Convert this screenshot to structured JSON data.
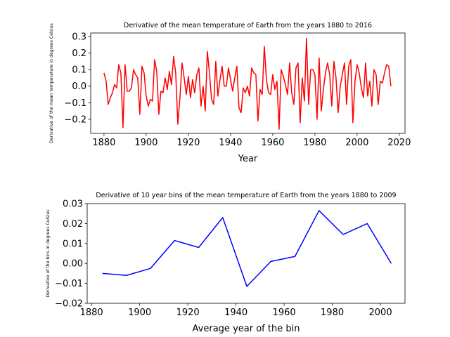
{
  "chart_data": [
    {
      "type": "line",
      "title": "Derivative of the mean temperature of Earth from the years 1880 to 2016",
      "xlabel": "Year",
      "ylabel": "Derivative of the mean temperature in degrees Celsius",
      "color": "#ff0000",
      "x": [
        1880,
        1881,
        1882,
        1883,
        1884,
        1885,
        1886,
        1887,
        1888,
        1889,
        1890,
        1891,
        1892,
        1893,
        1894,
        1895,
        1896,
        1897,
        1898,
        1899,
        1900,
        1901,
        1902,
        1903,
        1904,
        1905,
        1906,
        1907,
        1908,
        1909,
        1910,
        1911,
        1912,
        1913,
        1914,
        1915,
        1916,
        1917,
        1918,
        1919,
        1920,
        1921,
        1922,
        1923,
        1924,
        1925,
        1926,
        1927,
        1928,
        1929,
        1930,
        1931,
        1932,
        1933,
        1934,
        1935,
        1936,
        1937,
        1938,
        1939,
        1940,
        1941,
        1942,
        1943,
        1944,
        1945,
        1946,
        1947,
        1948,
        1949,
        1950,
        1951,
        1952,
        1953,
        1954,
        1955,
        1956,
        1957,
        1958,
        1959,
        1960,
        1961,
        1962,
        1963,
        1964,
        1965,
        1966,
        1967,
        1968,
        1969,
        1970,
        1971,
        1972,
        1973,
        1974,
        1975,
        1976,
        1977,
        1978,
        1979,
        1980,
        1981,
        1982,
        1983,
        1984,
        1985,
        1986,
        1987,
        1988,
        1989,
        1990,
        1991,
        1992,
        1993,
        1994,
        1995,
        1996,
        1997,
        1998,
        1999,
        2000,
        2001,
        2002,
        2003,
        2004,
        2005,
        2006,
        2007,
        2008,
        2009,
        2010,
        2011,
        2012,
        2013,
        2014,
        2015,
        2016
      ],
      "values": [
        0.08,
        0.03,
        -0.11,
        -0.07,
        -0.04,
        0.01,
        -0.01,
        0.13,
        0.08,
        -0.25,
        0.13,
        -0.03,
        -0.03,
        -0.01,
        0.1,
        0.07,
        0.05,
        -0.17,
        0.12,
        0.08,
        -0.06,
        -0.12,
        -0.08,
        -0.09,
        0.16,
        0.09,
        -0.17,
        -0.03,
        -0.04,
        0.05,
        -0.02,
        0.09,
        0.01,
        0.18,
        0.08,
        -0.23,
        -0.07,
        0.14,
        0.05,
        -0.05,
        0.06,
        -0.07,
        0.04,
        -0.04,
        0.07,
        0.11,
        -0.12,
        0.0,
        -0.15,
        0.21,
        0.08,
        -0.08,
        -0.11,
        0.15,
        -0.06,
        0.04,
        0.12,
        0.0,
        0.0,
        0.11,
        0.04,
        -0.03,
        0.05,
        0.12,
        -0.13,
        -0.16,
        -0.01,
        -0.04,
        0.0,
        -0.06,
        0.11,
        0.08,
        0.07,
        -0.21,
        -0.02,
        -0.05,
        0.24,
        0.04,
        -0.04,
        -0.05,
        0.07,
        -0.02,
        0.03,
        -0.26,
        0.1,
        0.06,
        0.01,
        -0.05,
        0.14,
        -0.04,
        -0.11,
        0.11,
        0.14,
        -0.22,
        0.05,
        -0.09,
        0.29,
        -0.11,
        0.1,
        0.1,
        0.07,
        -0.2,
        0.17,
        -0.15,
        -0.02,
        0.08,
        0.14,
        0.07,
        -0.12,
        0.15,
        0.05,
        -0.16,
        0.0,
        0.07,
        0.14,
        -0.11,
        0.12,
        0.16,
        -0.22,
        0.03,
        0.13,
        0.08,
        -0.01,
        -0.07,
        0.14,
        -0.06,
        0.03,
        -0.12,
        0.1,
        0.07,
        -0.11,
        0.03,
        0.02,
        0.08,
        0.13,
        0.12,
        0.0
      ],
      "xlim": [
        1873.7,
        2022.7
      ],
      "ylim": [
        -0.285,
        0.321
      ],
      "xticks": [
        1880,
        1900,
        1920,
        1940,
        1960,
        1980,
        2000,
        2020
      ],
      "yticks": [
        0.3,
        0.2,
        0.1,
        {
          "value": 0.0,
          "label": "0.0"
        },
        {
          "value": -0.1,
          "label": "−0.1"
        },
        {
          "value": -0.2,
          "label": "−0.2"
        }
      ]
    },
    {
      "type": "line",
      "title": "Derivative of 10 year bins of the mean temperature of Earth from the years 1880 to 2009",
      "xlabel": "Average year of the bin",
      "ylabel": "Derivative of the bins in degrees Celsius",
      "color": "#0000ff",
      "x": [
        1884.5,
        1894.5,
        1904.5,
        1914.5,
        1924.5,
        1934.5,
        1944.5,
        1954.5,
        1964.5,
        1974.5,
        1984.5,
        1994.5,
        2004.5
      ],
      "values": [
        -0.005,
        -0.006,
        -0.0025,
        0.0115,
        0.008,
        0.023,
        -0.0115,
        0.001,
        0.0035,
        0.0265,
        0.0145,
        0.02,
        0.0
      ],
      "xlim": [
        1878.2,
        2010.2
      ],
      "ylim": [
        -0.02,
        0.03
      ],
      "xticks": [
        1880,
        1900,
        1920,
        1940,
        1960,
        1980,
        2000
      ],
      "yticks": [
        0.03,
        0.02,
        0.01,
        {
          "value": 0.0,
          "label": "0.00"
        },
        {
          "value": -0.01,
          "label": "−0.01"
        },
        {
          "value": -0.02,
          "label": "−0.02"
        }
      ]
    }
  ]
}
